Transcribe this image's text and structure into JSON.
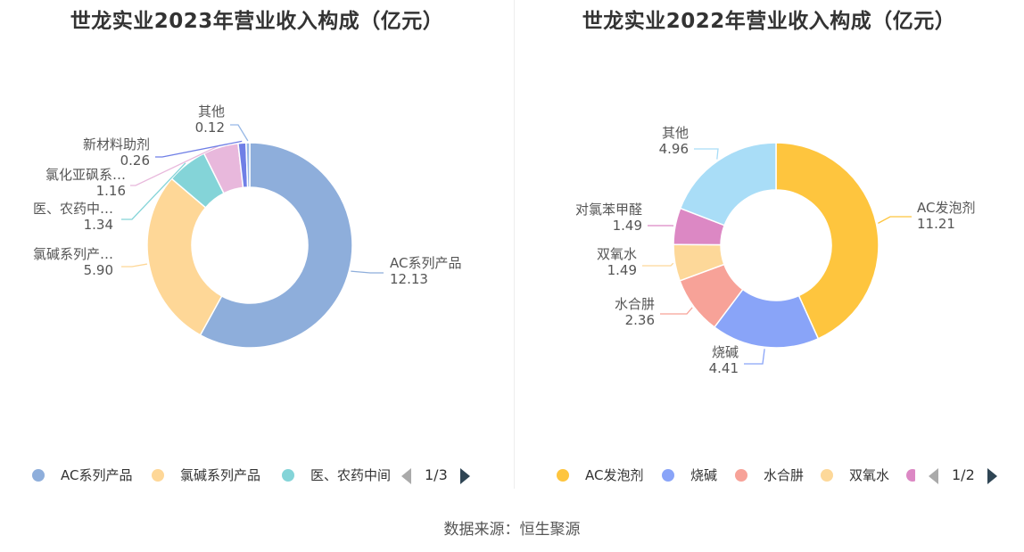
{
  "chart_data": [
    {
      "type": "pie",
      "title": "世龙实业2023年营业收入构成（亿元）",
      "categories": [
        "AC系列产品",
        "氯碱系列产品",
        "医、农药中间体",
        "氯化亚砜系列",
        "新材料助剂",
        "其他"
      ],
      "values": [
        12.13,
        5.9,
        1.34,
        1.16,
        0.26,
        0.12
      ],
      "value_labels": [
        "12.13",
        "5.90",
        "1.34",
        "1.16",
        "0.26",
        "0.12"
      ],
      "slice_labels": [
        "AC系列产品",
        "氯碱系列产…",
        "医、农药中…",
        "氯化亚砜系…",
        "新材料助剂",
        "其他"
      ],
      "colors": [
        "#8eaedb",
        "#fed797",
        "#84d4d8",
        "#e8b8dc",
        "#6f7fe6",
        "#97b8e6"
      ],
      "legend": {
        "labels": [
          "AC系列产品",
          "氯碱系列产品",
          "医、农药中间"
        ],
        "page": "1/3",
        "placement": "bottom"
      }
    },
    {
      "type": "pie",
      "title": "世龙实业2022年营业收入构成（亿元）",
      "categories": [
        "AC发泡剂",
        "烧碱",
        "水合肼",
        "双氧水",
        "对氯苯甲醛",
        "其他"
      ],
      "values": [
        11.21,
        4.41,
        2.36,
        1.49,
        1.49,
        4.96
      ],
      "value_labels": [
        "11.21",
        "4.41",
        "2.36",
        "1.49",
        "1.49",
        "4.96"
      ],
      "slice_labels": [
        "AC发泡剂",
        "烧碱",
        "水合肼",
        "双氧水",
        "对氯苯甲醛",
        "其他"
      ],
      "colors": [
        "#fec53e",
        "#89a4f8",
        "#f7a298",
        "#fdd899",
        "#dc88c4",
        "#a9ddf7"
      ],
      "legend": {
        "labels": [
          "AC发泡剂",
          "烧碱",
          "水合肼",
          "双氧水",
          ""
        ],
        "page": "1/2",
        "placement": "bottom"
      }
    }
  ],
  "footer": {
    "source": "数据来源：恒生聚源"
  }
}
